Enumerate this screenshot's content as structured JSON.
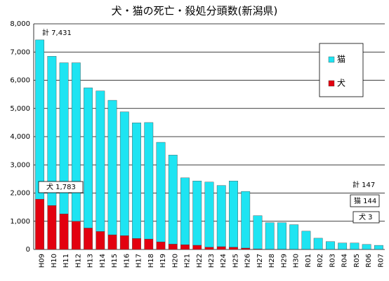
{
  "chart_data": {
    "type": "stacked-bar",
    "title": "犬・猫の死亡・殺処分頭数(新潟県)",
    "categories": [
      "H09",
      "H10",
      "H11",
      "H12",
      "H13",
      "H14",
      "H15",
      "H16",
      "H17",
      "H18",
      "H19",
      "H20",
      "H21",
      "H22",
      "H23",
      "H24",
      "H25",
      "H26",
      "H27",
      "H28",
      "H29",
      "H30",
      "R01",
      "R02",
      "R03",
      "R04",
      "R05",
      "R06",
      "R07"
    ],
    "series": [
      {
        "name": "犬",
        "color": "#e3000f",
        "values": [
          1783,
          1560,
          1260,
          1000,
          760,
          640,
          520,
          490,
          390,
          370,
          270,
          190,
          170,
          150,
          80,
          100,
          80,
          50,
          20,
          10,
          10,
          8,
          5,
          5,
          3,
          3,
          3,
          3,
          3
        ]
      },
      {
        "name": "猫",
        "color": "#1ee4f2",
        "values": [
          5648,
          5290,
          5360,
          5620,
          4970,
          4980,
          4770,
          4390,
          4100,
          4130,
          3530,
          3160,
          2370,
          2280,
          2310,
          2170,
          2350,
          2010,
          1180,
          940,
          940,
          872,
          645,
          395,
          277,
          227,
          227,
          177,
          144
        ]
      }
    ],
    "ylim": [
      0,
      8000
    ],
    "yticks": [
      0,
      {
        "value": 1000,
        "label": "1,000"
      },
      {
        "value": 2000,
        "label": "2,000"
      },
      {
        "value": 3000,
        "label": "3,000"
      },
      {
        "value": 4000,
        "label": "4,000"
      },
      {
        "value": 5000,
        "label": "5,000"
      },
      {
        "value": 6000,
        "label": "6,000"
      },
      {
        "value": 7000,
        "label": "7,000"
      },
      {
        "value": 8000,
        "label": "8,000"
      }
    ],
    "grid": true,
    "annotations": [
      "計 7,431",
      "犬 1,783",
      "計 147",
      "猫 144",
      "犬 3"
    ]
  }
}
